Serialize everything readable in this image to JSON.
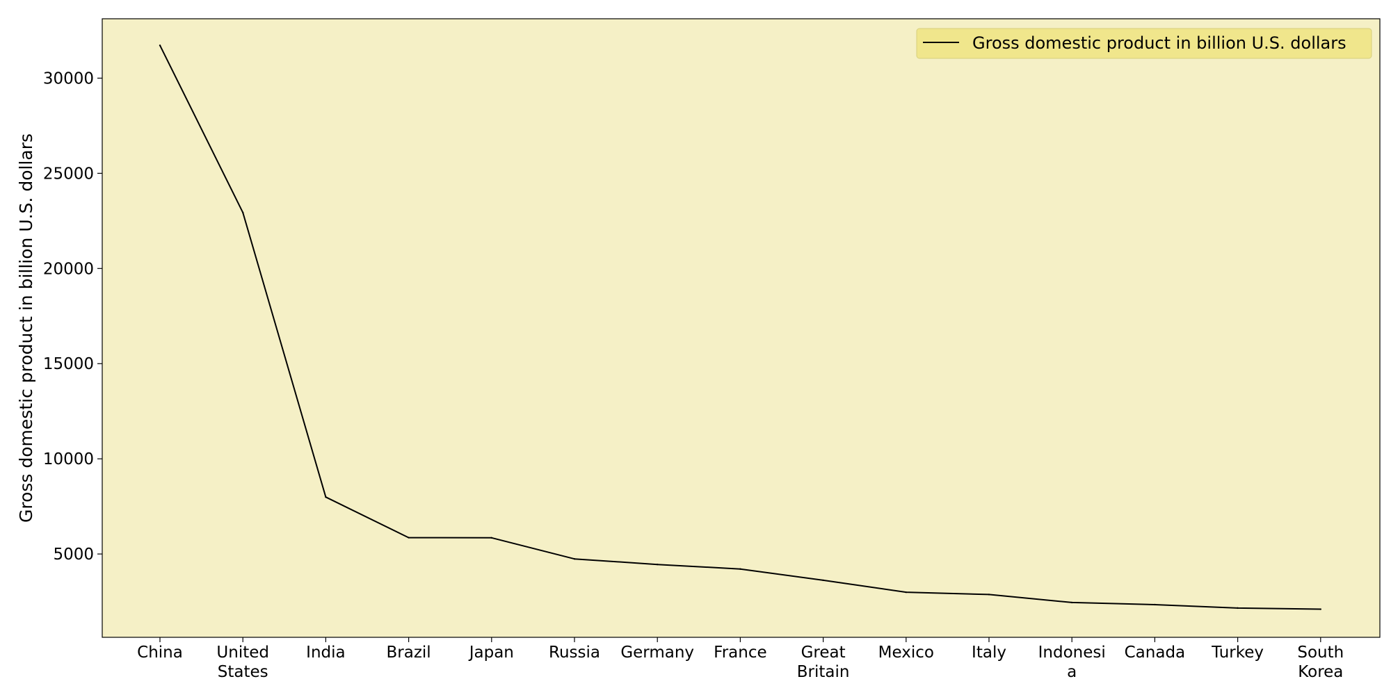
{
  "chart_data": {
    "type": "line",
    "title": "",
    "xlabel": "",
    "ylabel": "Gross domestic product in billion U.S. dollars",
    "categories": [
      "China",
      "United States",
      "India",
      "Brazil",
      "Japan",
      "Russia",
      "Germany",
      "France",
      "Great Britain",
      "Mexico",
      "Italy",
      "Indonesia",
      "Canada",
      "Turkey",
      "South Korea"
    ],
    "category_label_lines": [
      [
        "China"
      ],
      [
        "United",
        "States"
      ],
      [
        "India"
      ],
      [
        "Brazil"
      ],
      [
        "Japan"
      ],
      [
        "Russia"
      ],
      [
        "Germany"
      ],
      [
        "France"
      ],
      [
        "Great",
        "Britain"
      ],
      [
        "Mexico"
      ],
      [
        "Italy"
      ],
      [
        "Indonesi",
        "a"
      ],
      [
        "Canada"
      ],
      [
        "Turkey"
      ],
      [
        "South",
        "Korea"
      ]
    ],
    "series": [
      {
        "name": "Gross domestic product in billion U.S. dollars",
        "values": [
          31720,
          22940,
          7990,
          5860,
          5850,
          4740,
          4450,
          4210,
          3620,
          2990,
          2870,
          2450,
          2340,
          2160,
          2100
        ],
        "color": "#000000"
      }
    ],
    "yticks": [
      5000,
      10000,
      15000,
      20000,
      25000,
      30000
    ],
    "ylim": [
      622,
      33120
    ],
    "grid": false,
    "legend_position": "top-right",
    "plot_background": "#f5f0c6",
    "legend_background": "#f0e68c"
  }
}
